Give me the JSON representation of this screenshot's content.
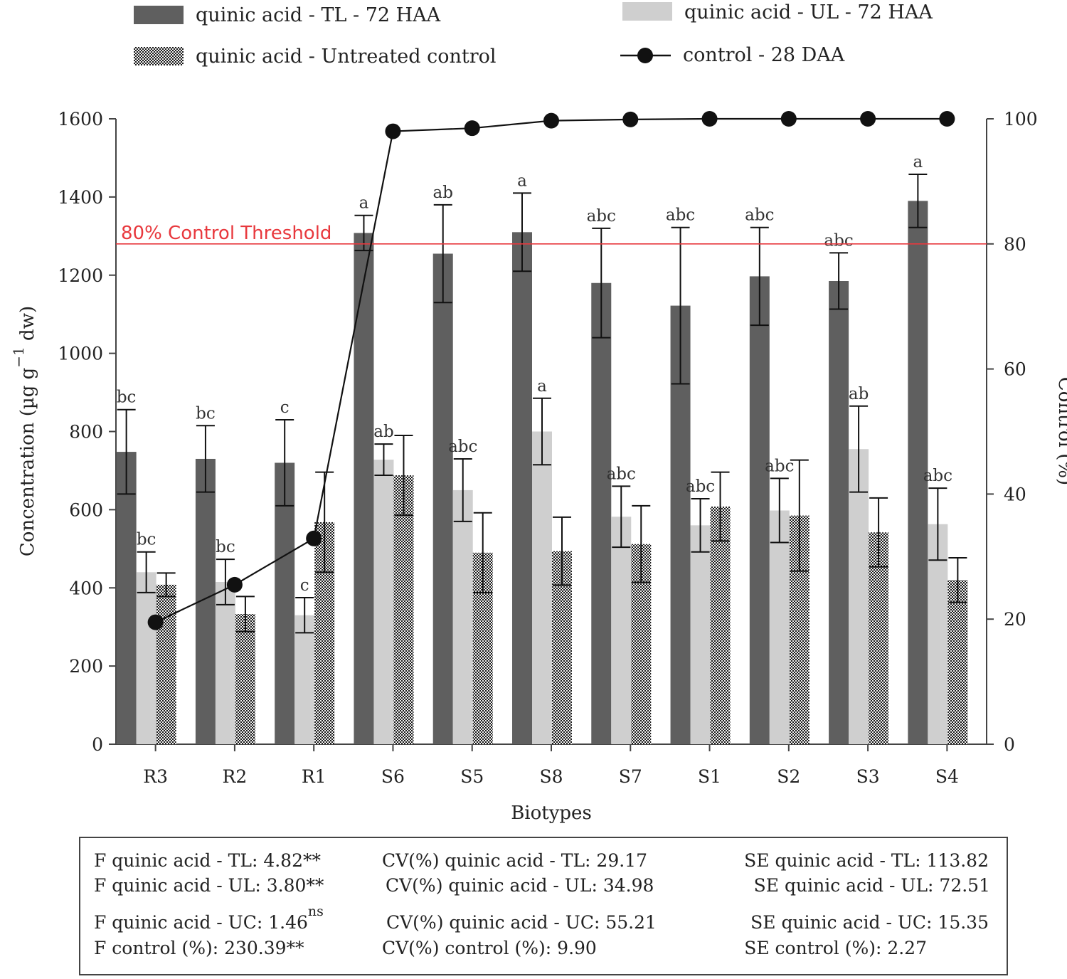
{
  "chart_data": {
    "type": "bar",
    "xlabel": "Biotypes",
    "ylabel": "Concentration (µg g",
    "ylabel_sup": "−1",
    "ylabel_end": " dw)",
    "y2label": "Control (%)",
    "ylim": [
      0,
      1600
    ],
    "y2lim": [
      0,
      100
    ],
    "yticks": [
      "0",
      "200",
      "400",
      "600",
      "800",
      "1000",
      "1200",
      "1400",
      "1600"
    ],
    "y2ticks": [
      "0",
      "20",
      "40",
      "60",
      "80",
      "100"
    ],
    "categories": [
      "R3",
      "R2",
      "R1",
      "S6",
      "S5",
      "S8",
      "S7",
      "S1",
      "S2",
      "S3",
      "S4"
    ],
    "series": [
      {
        "name": "quinic acid - TL - 72 HAA",
        "color": "#5f5f5f",
        "values": [
          748,
          730,
          720,
          1308,
          1255,
          1310,
          1180,
          1122,
          1197,
          1185,
          1390
        ],
        "errors": [
          108,
          85,
          110,
          45,
          125,
          100,
          140,
          200,
          125,
          72,
          68
        ],
        "letters": [
          "bc",
          "bc",
          "c",
          "a",
          "ab",
          "a",
          "abc",
          "abc",
          "abc",
          "abc",
          "a"
        ]
      },
      {
        "name": "quinic acid - UL - 72 HAA",
        "color": "#cfcfcf",
        "values": [
          440,
          415,
          330,
          728,
          650,
          800,
          582,
          560,
          598,
          755,
          563
        ],
        "errors": [
          52,
          58,
          45,
          40,
          80,
          85,
          78,
          68,
          82,
          110,
          92
        ],
        "letters": [
          "bc",
          "bc",
          "c",
          "ab",
          "abc",
          "a",
          "abc",
          "abc",
          "abc",
          "ab",
          "abc"
        ]
      },
      {
        "name": "quinic acid - Untreated control",
        "pattern": "checkered",
        "values": [
          408,
          333,
          568,
          688,
          490,
          494,
          512,
          608,
          585,
          542,
          420
        ],
        "errors": [
          30,
          45,
          128,
          102,
          102,
          87,
          98,
          88,
          142,
          88,
          57
        ]
      },
      {
        "name": "control - 28 DAA",
        "type": "line",
        "axis": "right",
        "color": "#111111",
        "values": [
          19.5,
          25.5,
          32.9,
          98,
          98.5,
          99.7,
          99.9,
          100,
          100,
          100,
          100
        ]
      }
    ],
    "threshold": {
      "label": "80% Control Threshold",
      "value": 80,
      "axis": "right",
      "color": "#e8383d"
    }
  },
  "stats": [
    {
      "col1": "F quinic acid - TL: 4.82**",
      "col2": "CV(%) quinic acid - TL: 29.17",
      "col3": "SE quinic acid - TL: 113.82"
    },
    {
      "col1": "F quinic acid - UL: 3.80**",
      "col2": "CV(%) quinic acid - UL: 34.98",
      "col3": "SE quinic acid - UL: 72.51"
    },
    {
      "col1": "F quinic acid - UC: 1.46",
      "col1_sup": "ns",
      "col2": "CV(%) quinic acid - UC: 55.21",
      "col3": "SE quinic acid - UC: 15.35"
    },
    {
      "col1": "F control (%): 230.39**",
      "col2": "CV(%) control (%): 9.90",
      "col3": "SE control (%): 2.27"
    }
  ]
}
